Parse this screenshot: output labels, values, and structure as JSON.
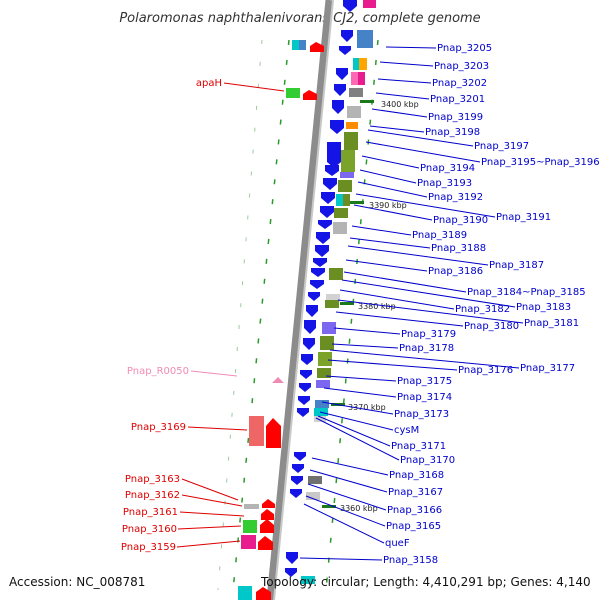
{
  "title": "Polaromonas naphthalenivorans CJ2, complete genome",
  "accession": "Accession: NC_008781",
  "topology": "Topology: circular; Length: 4,410,291 bp; Genes: 4,140",
  "colors": {
    "right_label": "#0000cc",
    "left_label": "#dd0000",
    "rna_label": "#f08cb4",
    "axis": "#8c8c8c"
  },
  "kbp_markers": [
    "3400 kbp",
    "3390 kbp",
    "3380 kbp",
    "3370 kbp",
    "3360 kbp"
  ],
  "right_labels": [
    "Pnap_3205",
    "Pnap_3203",
    "Pnap_3202",
    "Pnap_3201",
    "Pnap_3199",
    "Pnap_3198",
    "Pnap_3197",
    "Pnap_3195~Pnap_3196",
    "Pnap_3194",
    "Pnap_3193",
    "Pnap_3192",
    "Pnap_3191",
    "Pnap_3190",
    "Pnap_3189",
    "Pnap_3188",
    "Pnap_3187",
    "Pnap_3186",
    "Pnap_3184~Pnap_3185",
    "Pnap_3183",
    "Pnap_3182",
    "Pnap_3181",
    "Pnap_3180",
    "Pnap_3179",
    "Pnap_3178",
    "Pnap_3177",
    "Pnap_3176",
    "Pnap_3175",
    "Pnap_3174",
    "Pnap_3173",
    "cysM",
    "Pnap_3171",
    "Pnap_3170",
    "Pnap_3168",
    "Pnap_3167",
    "Pnap_3166",
    "Pnap_3165",
    "queF",
    "Pnap_3158"
  ],
  "left_labels": [
    "apaH",
    "Pnap_R0050",
    "Pnap_3169",
    "Pnap_3163",
    "Pnap_3162",
    "Pnap_3161",
    "Pnap_3160",
    "Pnap_3159"
  ]
}
